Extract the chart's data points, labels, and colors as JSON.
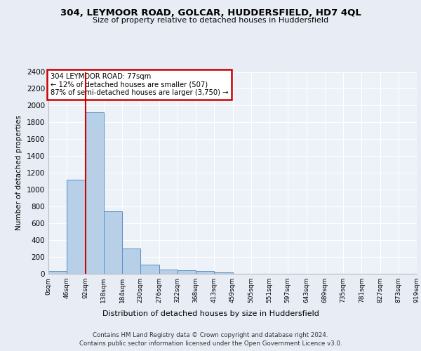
{
  "title1": "304, LEYMOOR ROAD, GOLCAR, HUDDERSFIELD, HD7 4QL",
  "title2": "Size of property relative to detached houses in Huddersfield",
  "xlabel": "Distribution of detached houses by size in Huddersfield",
  "ylabel": "Number of detached properties",
  "bin_labels": [
    "0sqm",
    "46sqm",
    "92sqm",
    "138sqm",
    "184sqm",
    "230sqm",
    "276sqm",
    "322sqm",
    "368sqm",
    "413sqm",
    "459sqm",
    "505sqm",
    "551sqm",
    "597sqm",
    "643sqm",
    "689sqm",
    "735sqm",
    "781sqm",
    "827sqm",
    "873sqm",
    "919sqm"
  ],
  "bar_heights": [
    35,
    1120,
    1920,
    740,
    300,
    105,
    48,
    40,
    30,
    20,
    0,
    0,
    0,
    0,
    0,
    0,
    0,
    0,
    0,
    0
  ],
  "bar_color": "#b8cfe8",
  "bar_edge_color": "#5a8fc4",
  "vline_pos": 2,
  "annotation_text": "304 LEYMOOR ROAD: 77sqm\n← 12% of detached houses are smaller (507)\n87% of semi-detached houses are larger (3,750) →",
  "annotation_box_color": "#cc0000",
  "vline_color": "#cc0000",
  "ylim": [
    0,
    2400
  ],
  "yticks": [
    0,
    200,
    400,
    600,
    800,
    1000,
    1200,
    1400,
    1600,
    1800,
    2000,
    2200,
    2400
  ],
  "footer1": "Contains HM Land Registry data © Crown copyright and database right 2024.",
  "footer2": "Contains public sector information licensed under the Open Government Licence v3.0.",
  "bg_color": "#e8edf5",
  "plot_bg_color": "#edf1f8"
}
